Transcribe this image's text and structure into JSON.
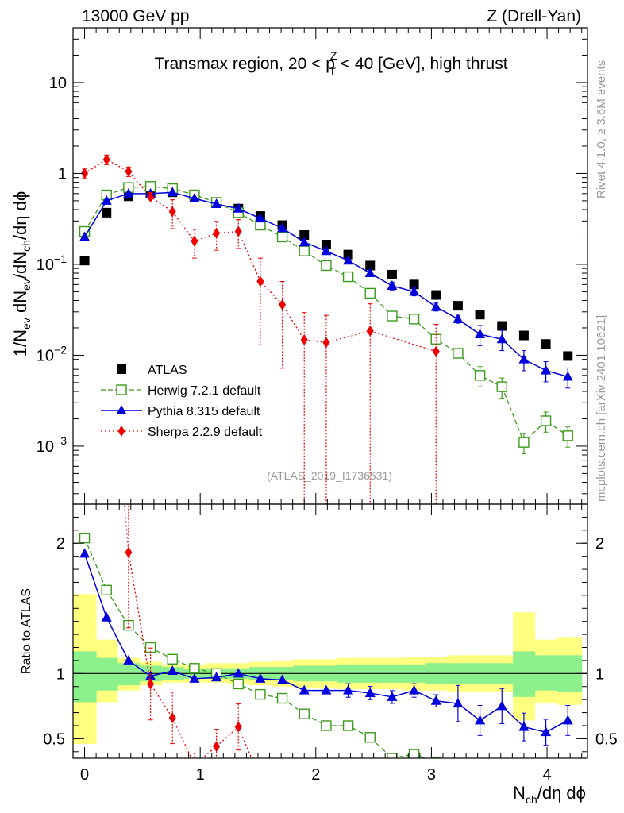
{
  "header": {
    "energy_label": "13000 GeV pp",
    "process_label": "Z (Drell-Yan)",
    "region_prefix": "Transmax region, 20 < p",
    "region_sup": "Z",
    "region_sub": "T",
    "region_suffix": " < 40 [GeV], high thrust",
    "watermark": "(ATLAS_2019_I1736531)",
    "side_rivet": "Rivet 4.1.0, ≥ 3.6M events",
    "side_mcplots": "mcplots.cern.ch [arXiv:2401.10621]"
  },
  "colors": {
    "data": "#000000",
    "herwig": "#3a9a1a",
    "pythia": "#0000dd",
    "sherpa": "#ee0000",
    "band_inner": "#8cf08c",
    "band_outer": "#ffff80"
  },
  "chart_data": [
    {
      "type": "scatter",
      "name": "main",
      "title": "Transmax region, 20 < pT^Z < 40 [GeV], high thrust",
      "ylabel": "1/N_ev dN_ev/dN_ch/dη dϕ",
      "yscale": "log",
      "ylim": [
        0.00023,
        40
      ],
      "xlim": [
        -0.1,
        4.35
      ],
      "yticks": [
        {
          "v": 0.001,
          "b": "10",
          "e": "−3"
        },
        {
          "v": 0.01,
          "b": "10",
          "e": "−2"
        },
        {
          "v": 0.1,
          "b": "10",
          "e": "−1"
        },
        {
          "v": 1,
          "b": "1",
          "e": ""
        },
        {
          "v": 10,
          "b": "10",
          "e": ""
        }
      ],
      "x": [
        0,
        0.19,
        0.38,
        0.57,
        0.76,
        0.95,
        1.14,
        1.33,
        1.52,
        1.71,
        1.9,
        2.09,
        2.28,
        2.47,
        2.66,
        2.85,
        3.04,
        3.23,
        3.42,
        3.61,
        3.8,
        3.99,
        4.18
      ],
      "legend": [
        {
          "key": "data",
          "label": "ATLAS"
        },
        {
          "key": "herwig",
          "label": "Herwig 7.2.1 default"
        },
        {
          "key": "pythia",
          "label": "Pythia 8.315 default"
        },
        {
          "key": "sherpa",
          "label": "Sherpa 2.2.9 default"
        }
      ],
      "series": [
        {
          "key": "data",
          "name": "ATLAS",
          "values": [
            0.11,
            0.37,
            0.56,
            0.6,
            0.62,
            0.56,
            0.48,
            0.41,
            0.34,
            0.27,
            0.21,
            0.165,
            0.128,
            0.097,
            0.077,
            0.06,
            0.046,
            0.035,
            0.028,
            0.021,
            0.0165,
            0.0133,
            0.0098
          ]
        },
        {
          "key": "herwig",
          "name": "Herwig 7.2.1 default",
          "values": [
            0.23,
            0.58,
            0.7,
            0.72,
            0.68,
            0.58,
            0.48,
            0.37,
            0.27,
            0.2,
            0.14,
            0.097,
            0.073,
            0.048,
            0.027,
            0.025,
            0.015,
            0.0105,
            0.006,
            0.0045,
            0.0011,
            0.0019,
            0.0013
          ]
        },
        {
          "key": "pythia",
          "name": "Pythia 8.315 default",
          "values": [
            0.2,
            0.5,
            0.6,
            0.6,
            0.62,
            0.53,
            0.46,
            0.41,
            0.32,
            0.25,
            0.175,
            0.14,
            0.11,
            0.08,
            0.058,
            0.05,
            0.034,
            0.025,
            0.017,
            0.015,
            0.009,
            0.0068,
            0.0058
          ]
        },
        {
          "key": "sherpa",
          "name": "Sherpa 2.2.9 default",
          "x": [
            0,
            0.19,
            0.38,
            0.57,
            0.76,
            0.95,
            1.14,
            1.33,
            1.52,
            1.71,
            1.9,
            2.09,
            2.47,
            3.04
          ],
          "values": [
            1.0,
            1.42,
            1.05,
            0.55,
            0.38,
            0.18,
            0.22,
            0.23,
            0.065,
            0.036,
            0.0148,
            0.0138,
            0.0185,
            0.011
          ]
        }
      ]
    },
    {
      "type": "line",
      "name": "ratio",
      "ylabel": "Ratio to ATLAS",
      "xlabel": "N_ch/dη dϕ",
      "ylim": [
        0.35,
        2.3
      ],
      "xlim": [
        -0.1,
        4.35
      ],
      "yticks": [
        {
          "v": 0.5,
          "label": "0.5"
        },
        {
          "v": 1,
          "label": "1"
        },
        {
          "v": 2,
          "label": "2"
        }
      ],
      "xticks": [
        {
          "v": 0,
          "label": "0"
        },
        {
          "v": 1,
          "label": "1"
        },
        {
          "v": 2,
          "label": "2"
        },
        {
          "v": 3,
          "label": "3"
        },
        {
          "v": 4,
          "label": "4"
        }
      ],
      "band_edges": [
        -0.1,
        0.1,
        0.285,
        0.475,
        0.665,
        0.855,
        1.045,
        1.235,
        1.425,
        1.615,
        1.805,
        1.995,
        2.185,
        2.375,
        2.565,
        2.755,
        2.945,
        3.135,
        3.325,
        3.515,
        3.705,
        3.895,
        4.085,
        4.3
      ],
      "band_inner": [
        [
          0.78,
          1.17
        ],
        [
          0.87,
          1.12
        ],
        [
          0.91,
          1.08
        ],
        [
          0.94,
          1.06
        ],
        [
          0.95,
          1.05
        ],
        [
          0.96,
          1.04
        ],
        [
          0.96,
          1.04
        ],
        [
          0.96,
          1.04
        ],
        [
          0.95,
          1.05
        ],
        [
          0.95,
          1.05
        ],
        [
          0.94,
          1.06
        ],
        [
          0.94,
          1.06
        ],
        [
          0.93,
          1.07
        ],
        [
          0.93,
          1.07
        ],
        [
          0.93,
          1.07
        ],
        [
          0.93,
          1.07
        ],
        [
          0.92,
          1.08
        ],
        [
          0.92,
          1.08
        ],
        [
          0.92,
          1.08
        ],
        [
          0.92,
          1.08
        ],
        [
          0.82,
          1.17
        ],
        [
          0.87,
          1.14
        ],
        [
          0.86,
          1.14
        ]
      ],
      "band_outer": [
        [
          0.46,
          1.61
        ],
        [
          0.78,
          1.26
        ],
        [
          0.87,
          1.12
        ],
        [
          0.91,
          1.09
        ],
        [
          0.93,
          1.07
        ],
        [
          0.93,
          1.07
        ],
        [
          0.93,
          1.08
        ],
        [
          0.92,
          1.08
        ],
        [
          0.91,
          1.09
        ],
        [
          0.9,
          1.1
        ],
        [
          0.89,
          1.11
        ],
        [
          0.89,
          1.11
        ],
        [
          0.88,
          1.12
        ],
        [
          0.88,
          1.12
        ],
        [
          0.88,
          1.12
        ],
        [
          0.87,
          1.13
        ],
        [
          0.87,
          1.13
        ],
        [
          0.86,
          1.14
        ],
        [
          0.86,
          1.14
        ],
        [
          0.86,
          1.14
        ],
        [
          0.64,
          1.47
        ],
        [
          0.77,
          1.26
        ],
        [
          0.76,
          1.28
        ]
      ],
      "series": [
        {
          "key": "herwig",
          "name": "Herwig 7.2.1 default",
          "values": [
            2.04,
            1.64,
            1.37,
            1.2,
            1.11,
            1.04,
            1.0,
            0.92,
            0.84,
            0.81,
            0.69,
            0.6,
            0.6,
            0.51,
            0.35,
            0.38,
            0.32
          ]
        },
        {
          "key": "pythia",
          "name": "Pythia 8.315 default",
          "values": [
            1.92,
            1.43,
            1.1,
            0.98,
            1.02,
            0.96,
            0.97,
            1.0,
            0.96,
            0.95,
            0.87,
            0.87,
            0.87,
            0.85,
            0.82,
            0.87,
            0.79,
            0.77,
            0.64,
            0.75,
            0.59,
            0.55,
            0.64
          ]
        },
        {
          "key": "sherpa",
          "name": "Sherpa 2.2.9 default",
          "x": [
            0.19,
            0.38,
            0.57,
            0.76,
            0.95,
            1.14,
            1.33,
            1.52
          ],
          "values": [
            3.9,
            1.93,
            0.92,
            0.66,
            0.3,
            0.44,
            0.59,
            0.19
          ]
        }
      ]
    }
  ]
}
